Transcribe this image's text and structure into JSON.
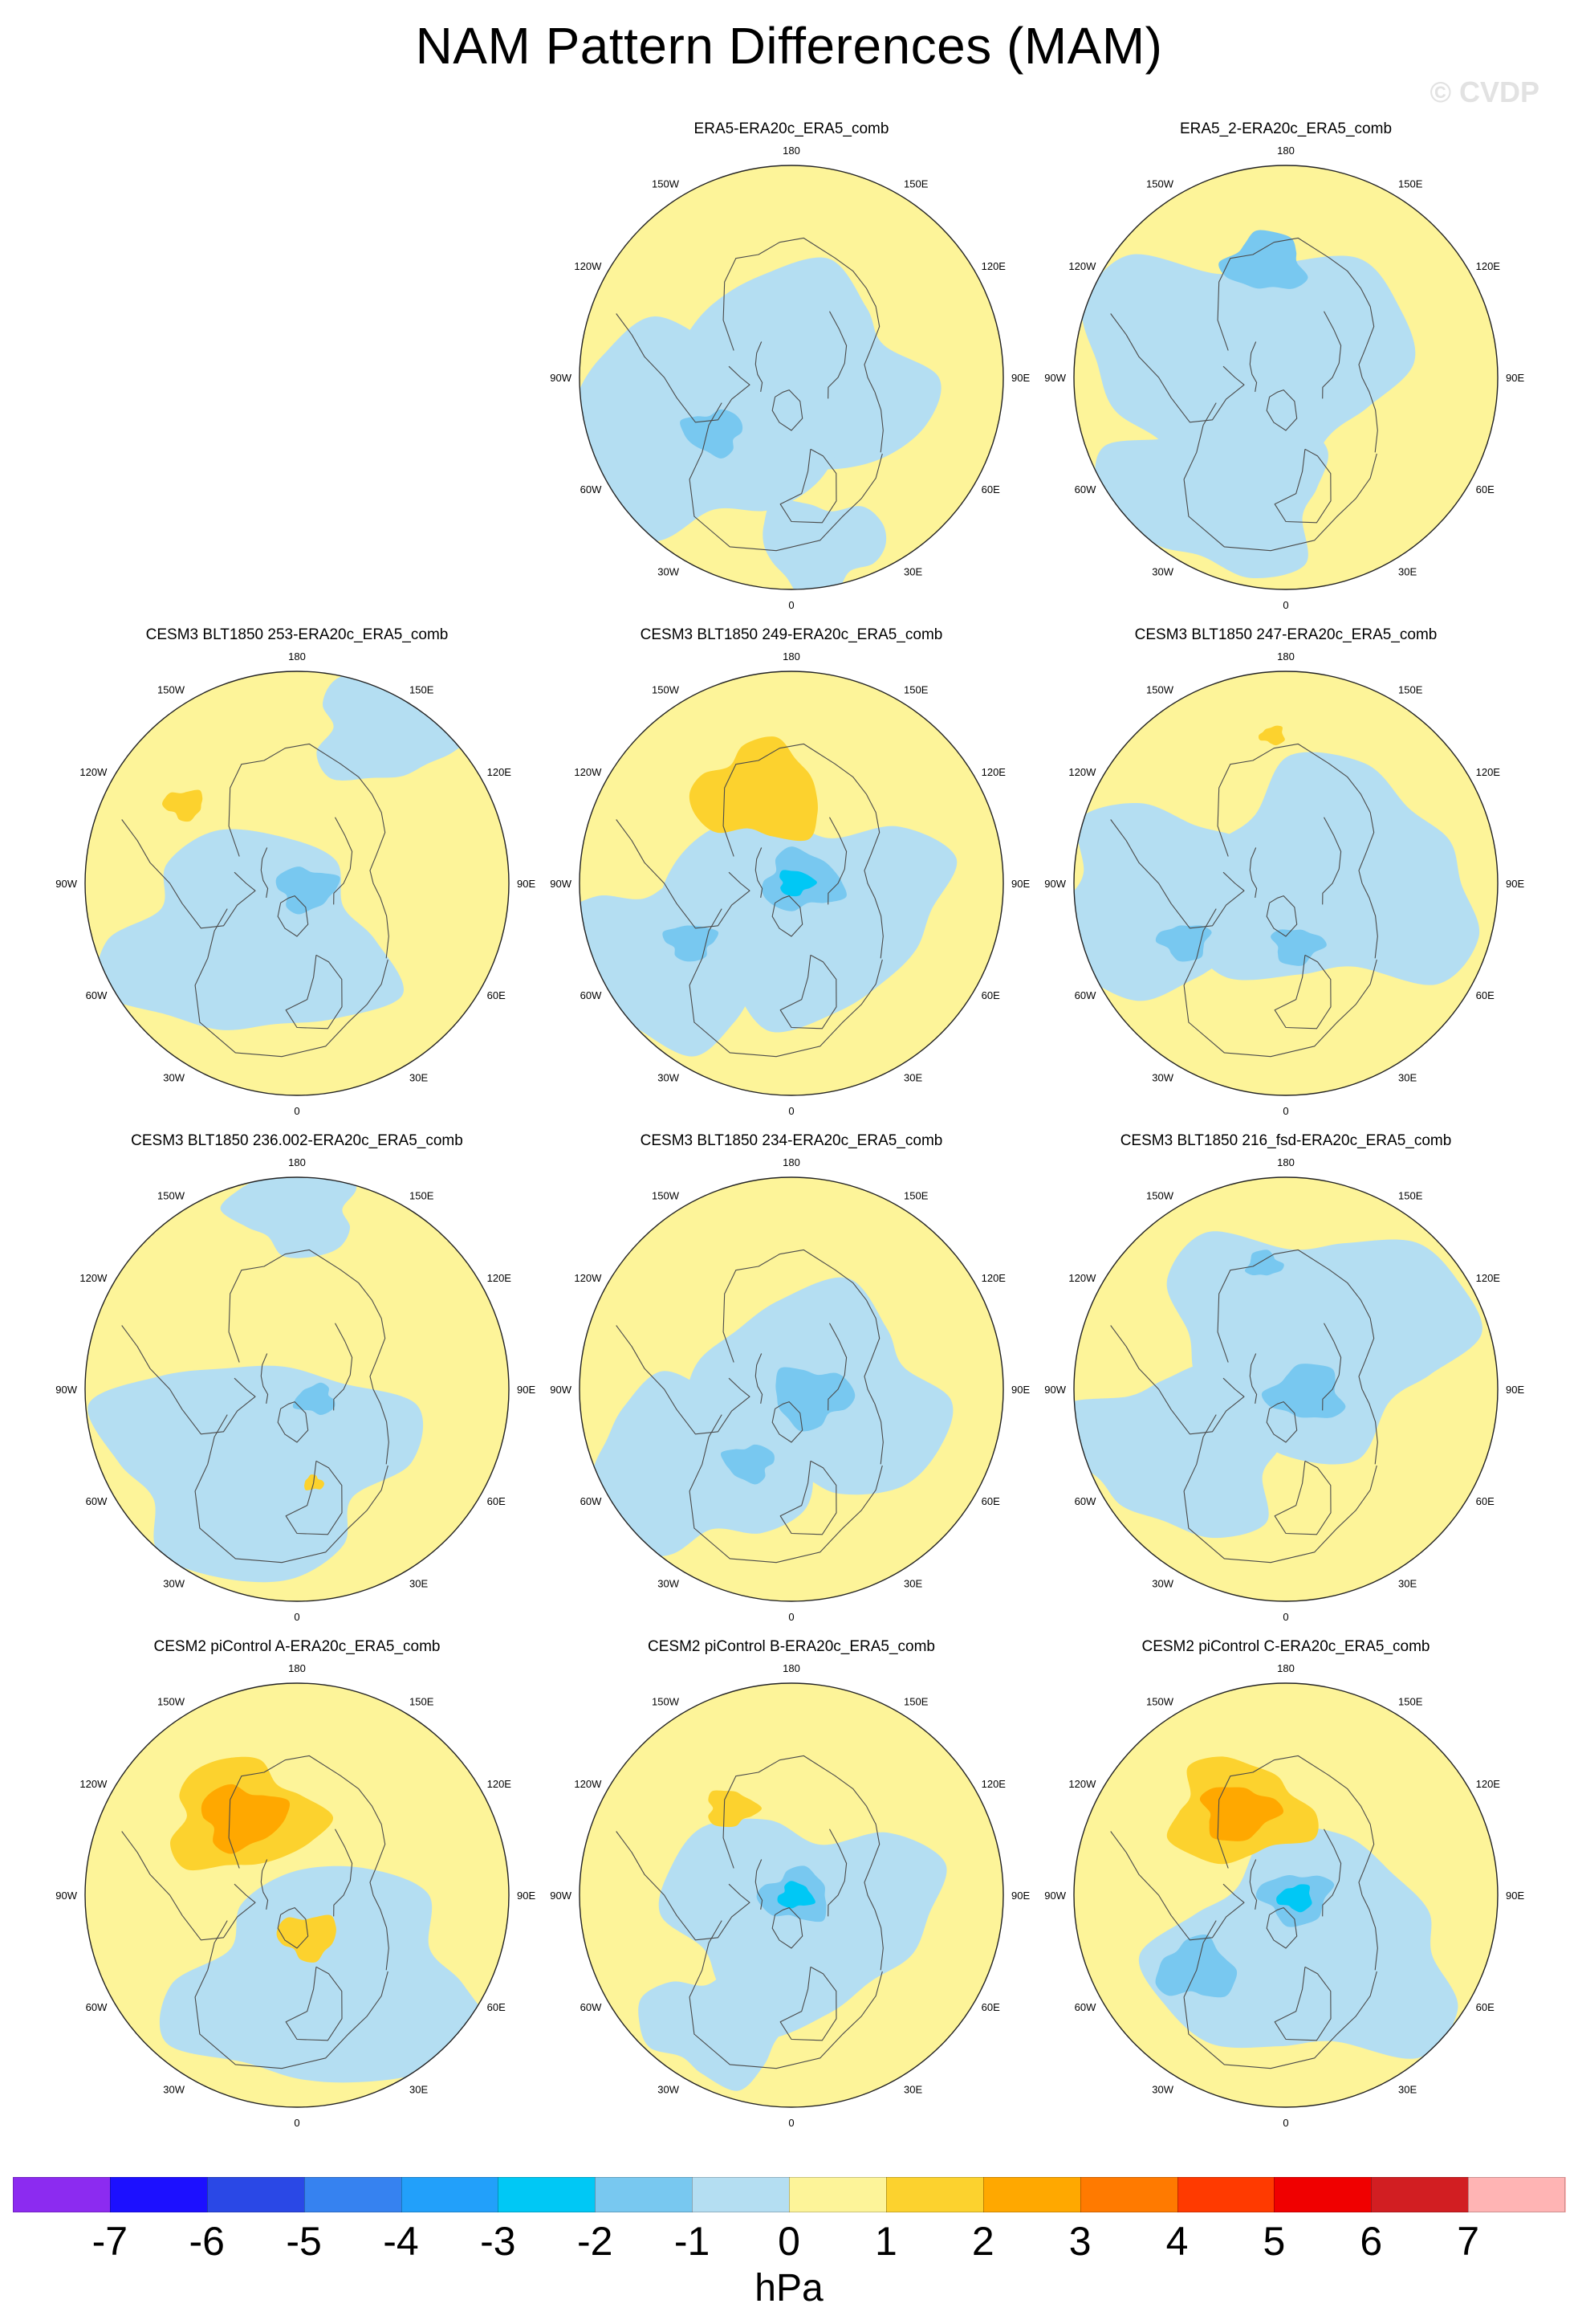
{
  "title": "NAM Pattern Differences (MAM)",
  "watermark": "© CVDP",
  "map_labels": {
    "top": "180",
    "bottom": "0",
    "left": "90W",
    "right": "90E",
    "ul1": "150W",
    "ul2": "120W",
    "ur1": "150E",
    "ur2": "120E",
    "ll1": "60W",
    "ll2": "30W",
    "lr1": "60E",
    "lr2": "30E"
  },
  "panels": [
    {
      "title": "ERA5-ERA20c_ERA5_comb",
      "background_color": "#fdf499",
      "features": [
        {
          "color": "#b4def2",
          "lon": 200,
          "colat": 0.0,
          "size": 0.55
        },
        {
          "color": "#b4def2",
          "lon": 300,
          "colat": 0.55,
          "size": 0.55
        },
        {
          "color": "#b4def2",
          "lon": 10,
          "colat": 0.8,
          "size": 0.25
        },
        {
          "color": "#78c8f0",
          "lon": 305,
          "colat": 0.45,
          "size": 0.12
        }
      ]
    },
    {
      "title": "ERA5_2-ERA20c_ERA5_comb",
      "background_color": "#fdf499",
      "features": [
        {
          "color": "#b4def2",
          "lon": 250,
          "colat": 0.2,
          "size": 0.65
        },
        {
          "color": "#b4def2",
          "lon": 330,
          "colat": 0.6,
          "size": 0.45
        },
        {
          "color": "#78c8f0",
          "lon": 190,
          "colat": 0.55,
          "size": 0.16
        }
      ]
    },
    {
      "title": "CESM3 BLT1850 253-ERA20c_ERA5_comb",
      "background_color": "#fdf499",
      "features": [
        {
          "color": "#b4def2",
          "lon": 320,
          "colat": 0.35,
          "size": 0.55
        },
        {
          "color": "#b4def2",
          "lon": 150,
          "colat": 0.85,
          "size": 0.3
        },
        {
          "color": "#78c8f0",
          "lon": 60,
          "colat": 0.05,
          "size": 0.12
        },
        {
          "color": "#fcd22e",
          "lon": 235,
          "colat": 0.65,
          "size": 0.08
        }
      ]
    },
    {
      "title": "CESM3 BLT1850 249-ERA20c_ERA5_comb",
      "background_color": "#fdf499",
      "features": [
        {
          "color": "#b4def2",
          "lon": 30,
          "colat": 0.15,
          "size": 0.55
        },
        {
          "color": "#b4def2",
          "lon": 300,
          "colat": 0.7,
          "size": 0.45
        },
        {
          "color": "#fcd22e",
          "lon": 200,
          "colat": 0.45,
          "size": 0.26
        },
        {
          "color": "#78c8f0",
          "lon": 100,
          "colat": 0.05,
          "size": 0.16
        },
        {
          "color": "#00c8f5",
          "lon": 100,
          "colat": 0.02,
          "size": 0.07
        },
        {
          "color": "#78c8f0",
          "lon": 300,
          "colat": 0.55,
          "size": 0.1
        }
      ]
    },
    {
      "title": "CESM3 BLT1850 247-ERA20c_ERA5_comb",
      "background_color": "#fdf499",
      "features": [
        {
          "color": "#b4def2",
          "lon": 90,
          "colat": 0.2,
          "size": 0.6
        },
        {
          "color": "#b4def2",
          "lon": 280,
          "colat": 0.55,
          "size": 0.5
        },
        {
          "color": "#78c8f0",
          "lon": 10,
          "colat": 0.3,
          "size": 0.1
        },
        {
          "color": "#78c8f0",
          "lon": 300,
          "colat": 0.55,
          "size": 0.1
        },
        {
          "color": "#fcd22e",
          "lon": 185,
          "colat": 0.7,
          "size": 0.05
        }
      ]
    },
    {
      "title": "CESM3 BLT1850 236.002-ERA20c_ERA5_comb",
      "background_color": "#fdf499",
      "features": [
        {
          "color": "#b4def2",
          "lon": 330,
          "colat": 0.4,
          "size": 0.6
        },
        {
          "color": "#b4def2",
          "lon": 180,
          "colat": 0.85,
          "size": 0.25
        },
        {
          "color": "#78c8f0",
          "lon": 60,
          "colat": 0.1,
          "size": 0.08
        },
        {
          "color": "#fcd22e",
          "lon": 10,
          "colat": 0.45,
          "size": 0.04
        }
      ]
    },
    {
      "title": "CESM3 BLT1850 234-ERA20c_ERA5_comb",
      "background_color": "#fdf499",
      "features": [
        {
          "color": "#b4def2",
          "lon": 60,
          "colat": 0.1,
          "size": 0.55
        },
        {
          "color": "#b4def2",
          "lon": 310,
          "colat": 0.6,
          "size": 0.45
        },
        {
          "color": "#78c8f0",
          "lon": 70,
          "colat": 0.1,
          "size": 0.16
        },
        {
          "color": "#78c8f0",
          "lon": 330,
          "colat": 0.4,
          "size": 0.1
        }
      ]
    },
    {
      "title": "CESM3 BLT1850 216_fsd-ERA20c_ERA5_comb",
      "background_color": "#fdf499",
      "features": [
        {
          "color": "#b4def2",
          "lon": 150,
          "colat": 0.3,
          "size": 0.6
        },
        {
          "color": "#b4def2",
          "lon": 300,
          "colat": 0.55,
          "size": 0.45
        },
        {
          "color": "#78c8f0",
          "lon": 80,
          "colat": 0.1,
          "size": 0.15
        },
        {
          "color": "#78c8f0",
          "lon": 190,
          "colat": 0.6,
          "size": 0.07
        }
      ]
    },
    {
      "title": "CESM2 piControl A-ERA20c_ERA5_comb",
      "background_color": "#fdf499",
      "features": [
        {
          "color": "#b4def2",
          "lon": 20,
          "colat": 0.45,
          "size": 0.6
        },
        {
          "color": "#fcd22e",
          "lon": 215,
          "colat": 0.45,
          "size": 0.3
        },
        {
          "color": "#ffa800",
          "lon": 215,
          "colat": 0.45,
          "size": 0.17
        },
        {
          "color": "#fcd22e",
          "lon": 15,
          "colat": 0.2,
          "size": 0.12
        }
      ]
    },
    {
      "title": "CESM2 piControl B-ERA20c_ERA5_comb",
      "background_color": "#fdf499",
      "features": [
        {
          "color": "#b4def2",
          "lon": 20,
          "colat": 0.1,
          "size": 0.55
        },
        {
          "color": "#b4def2",
          "lon": 330,
          "colat": 0.7,
          "size": 0.3
        },
        {
          "color": "#78c8f0",
          "lon": 80,
          "colat": 0.02,
          "size": 0.14
        },
        {
          "color": "#00c8f5",
          "lon": 80,
          "colat": 0.02,
          "size": 0.07
        },
        {
          "color": "#fcd22e",
          "lon": 215,
          "colat": 0.5,
          "size": 0.1
        }
      ]
    },
    {
      "title": "CESM2 piControl C-ERA20c_ERA5_comb",
      "background_color": "#fdf499",
      "features": [
        {
          "color": "#b4def2",
          "lon": 20,
          "colat": 0.3,
          "size": 0.6
        },
        {
          "color": "#fcd22e",
          "lon": 210,
          "colat": 0.45,
          "size": 0.28
        },
        {
          "color": "#ffa800",
          "lon": 210,
          "colat": 0.45,
          "size": 0.15
        },
        {
          "color": "#78c8f0",
          "lon": 75,
          "colat": 0.05,
          "size": 0.14
        },
        {
          "color": "#00c8f5",
          "lon": 75,
          "colat": 0.05,
          "size": 0.07
        },
        {
          "color": "#78c8f0",
          "lon": 310,
          "colat": 0.55,
          "size": 0.16
        }
      ]
    }
  ],
  "colorbar": {
    "units": "hPa",
    "colors": [
      "#8c2bf0",
      "#1c10ff",
      "#2a48e6",
      "#3682f0",
      "#22a0fa",
      "#00c8f5",
      "#78c8f0",
      "#b4def2",
      "#fdf499",
      "#fcd22e",
      "#ffa800",
      "#ff7a00",
      "#ff3a00",
      "#f00000",
      "#d21e22",
      "#ffb4b4"
    ],
    "tick_labels": [
      "-7",
      "-6",
      "-5",
      "-4",
      "-3",
      "-2",
      "-1",
      "0",
      "1",
      "2",
      "3",
      "4",
      "5",
      "6",
      "7"
    ]
  }
}
